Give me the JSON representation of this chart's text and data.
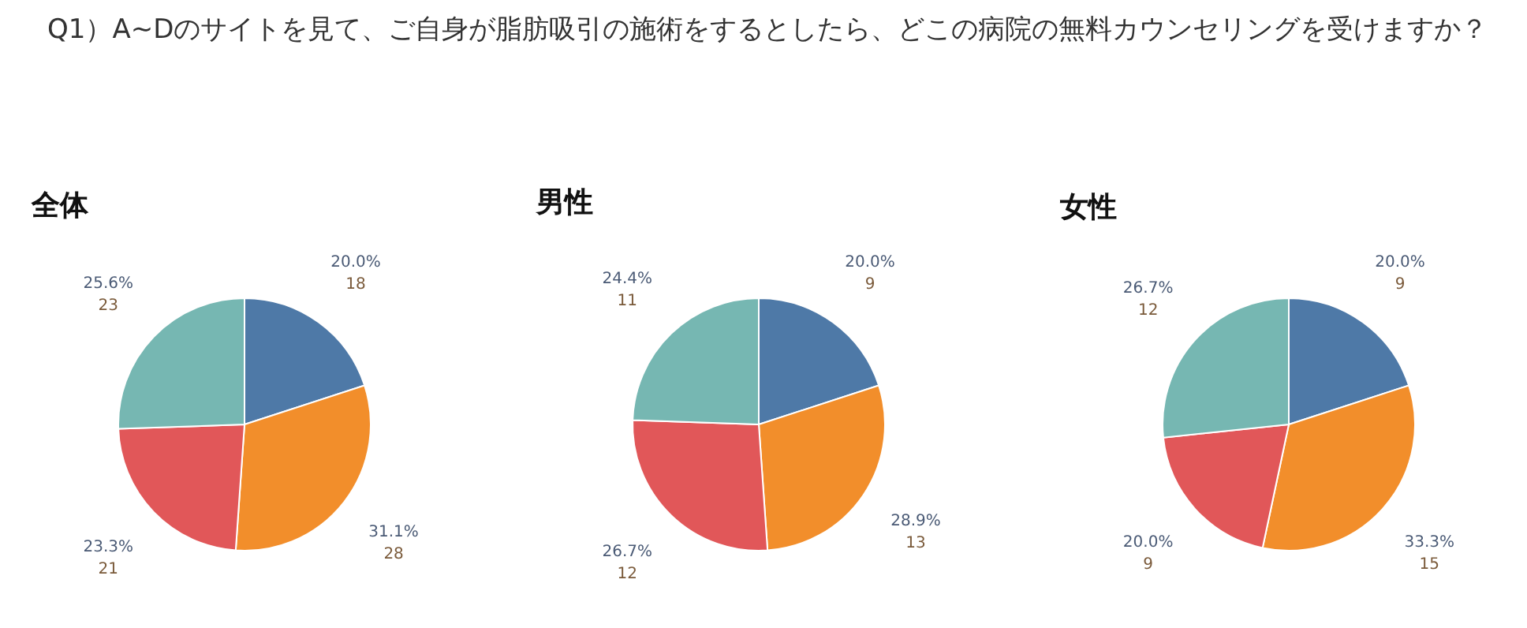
{
  "chart_data": [
    {
      "type": "pie",
      "title": "Q1）A~Dのサイトを見て、ご自身が脂肪吸引の施術をするとしたら、どこの病院の無料カウンセリングを受けますか？",
      "subtitle": "全体",
      "categories": [
        null,
        null,
        null,
        null
      ],
      "values": [
        18,
        28,
        21,
        23
      ],
      "colors": [
        "#4e79a7",
        "#f28e2b",
        "#e15759",
        "#76b7b2"
      ],
      "value_labels": [
        "20.0%\n18",
        "31.1%\n28",
        "23.3%\n21",
        "25.6%\n23"
      ]
    },
    {
      "type": "pie",
      "title": "男性",
      "categories": [
        null,
        null,
        null,
        null
      ],
      "values": [
        9,
        13,
        12,
        11
      ],
      "colors": [
        "#4e79a7",
        "#f28e2b",
        "#e15759",
        "#76b7b2"
      ],
      "value_labels": [
        "20.0%\n9",
        "28.9%\n13",
        "26.7%\n12",
        "24.4%\n11"
      ]
    },
    {
      "type": "pie",
      "title": "女性",
      "categories": [
        null,
        null,
        null,
        null
      ],
      "values": [
        9,
        15,
        9,
        12
      ],
      "colors": [
        "#4e79a7",
        "#f28e2b",
        "#e15759",
        "#76b7b2"
      ],
      "value_labels": [
        "20.0%\n9",
        "33.3%\n15",
        "20.0%\n9",
        "26.7%\n12"
      ]
    }
  ]
}
